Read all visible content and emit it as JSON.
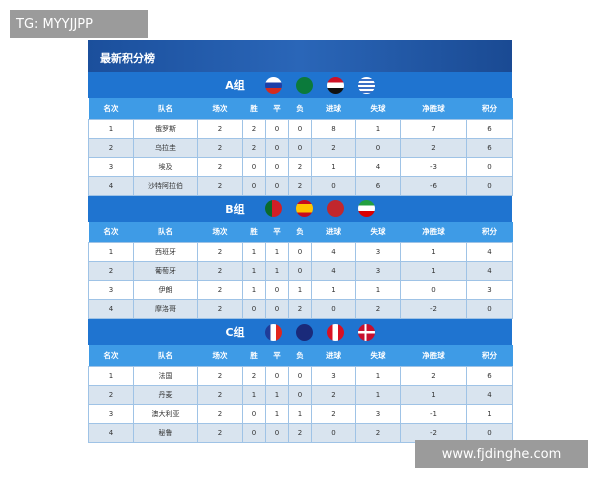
{
  "watermarks": {
    "top": "TG: MYYJJPP",
    "bottom": "www.fjdinghe.com"
  },
  "title": "最新积分榜",
  "headers": [
    "名次",
    "队名",
    "场次",
    "胜",
    "平",
    "负",
    "进球",
    "失球",
    "净胜球",
    "积分"
  ],
  "groups": [
    {
      "label": "A组",
      "flags": [
        "russia",
        "saudi-arabia",
        "egypt",
        "uruguay"
      ],
      "rows": [
        [
          "1",
          "俄罗斯",
          "2",
          "2",
          "0",
          "0",
          "8",
          "1",
          "7",
          "6"
        ],
        [
          "2",
          "乌拉圭",
          "2",
          "2",
          "0",
          "0",
          "2",
          "0",
          "2",
          "6"
        ],
        [
          "3",
          "埃及",
          "2",
          "0",
          "0",
          "2",
          "1",
          "4",
          "-3",
          "0"
        ],
        [
          "4",
          "沙特阿拉伯",
          "2",
          "0",
          "0",
          "2",
          "0",
          "6",
          "-6",
          "0"
        ]
      ]
    },
    {
      "label": "B组",
      "flags": [
        "portugal",
        "spain",
        "morocco",
        "iran"
      ],
      "rows": [
        [
          "1",
          "西班牙",
          "2",
          "1",
          "1",
          "0",
          "4",
          "3",
          "1",
          "4"
        ],
        [
          "2",
          "葡萄牙",
          "2",
          "1",
          "1",
          "0",
          "4",
          "3",
          "1",
          "4"
        ],
        [
          "3",
          "伊朗",
          "2",
          "1",
          "0",
          "1",
          "1",
          "1",
          "0",
          "3"
        ],
        [
          "4",
          "摩洛哥",
          "2",
          "0",
          "0",
          "2",
          "0",
          "2",
          "-2",
          "0"
        ]
      ]
    },
    {
      "label": "C组",
      "flags": [
        "france",
        "australia",
        "peru",
        "denmark"
      ],
      "rows": [
        [
          "1",
          "法国",
          "2",
          "2",
          "0",
          "0",
          "3",
          "1",
          "2",
          "6"
        ],
        [
          "2",
          "丹麦",
          "2",
          "1",
          "1",
          "0",
          "2",
          "1",
          "1",
          "4"
        ],
        [
          "3",
          "澳大利亚",
          "2",
          "0",
          "1",
          "1",
          "2",
          "3",
          "-1",
          "1"
        ],
        [
          "4",
          "秘鲁",
          "2",
          "0",
          "0",
          "2",
          "0",
          "2",
          "-2",
          "0"
        ]
      ]
    }
  ]
}
